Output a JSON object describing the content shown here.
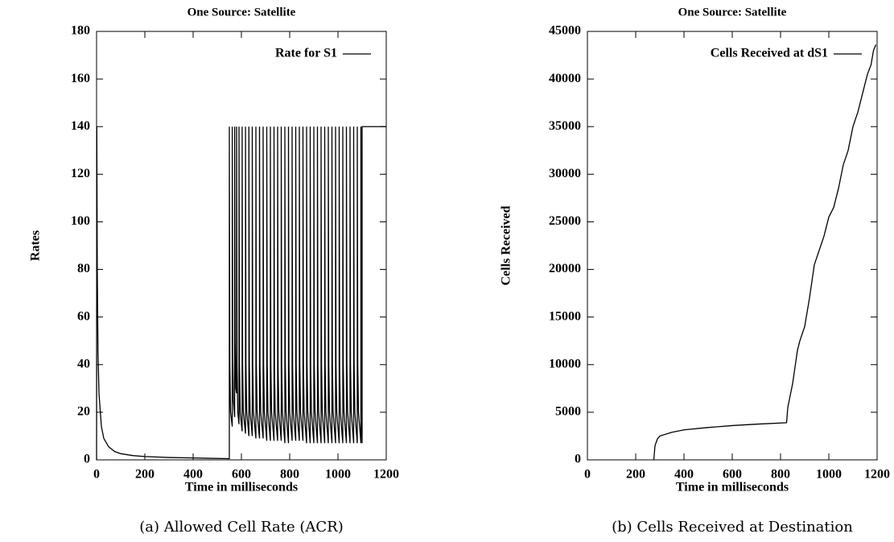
{
  "chart_data": [
    {
      "type": "line",
      "title": "One Source: Satellite",
      "xlabel": "Time in milliseconds",
      "ylabel": "Rates",
      "caption": "(a) Allowed Cell Rate (ACR)",
      "xlim": [
        0,
        1200
      ],
      "xticks": [
        0,
        200,
        400,
        600,
        800,
        1000,
        1200
      ],
      "ylim": [
        0,
        180
      ],
      "yticks": [
        0,
        20,
        40,
        60,
        80,
        100,
        120,
        140,
        160,
        180
      ],
      "legend": "upper right",
      "series": [
        {
          "name": "Rate for S1",
          "color": "#000000",
          "x": [
            0,
            1,
            3,
            6,
            10,
            20,
            30,
            50,
            75,
            100,
            150,
            200,
            300,
            400,
            550,
            550,
            552,
            555,
            562,
            562,
            564,
            567,
            572,
            572,
            574,
            577,
            580,
            580,
            582,
            585,
            590,
            590,
            592,
            595,
            603,
            603,
            605,
            608,
            617,
            617,
            619,
            622,
            631,
            631,
            633,
            636,
            645,
            645,
            647,
            650,
            660,
            660,
            662,
            665,
            675,
            675,
            677,
            680,
            690,
            690,
            692,
            695,
            705,
            705,
            707,
            710,
            720,
            720,
            722,
            725,
            735,
            735,
            737,
            740,
            750,
            750,
            752,
            755,
            765,
            765,
            767,
            770,
            780,
            780,
            782,
            785,
            795,
            795,
            797,
            800,
            810,
            810,
            812,
            815,
            825,
            825,
            827,
            830,
            840,
            840,
            842,
            845,
            855,
            855,
            857,
            860,
            870,
            870,
            872,
            875,
            885,
            885,
            887,
            890,
            900,
            900,
            902,
            905,
            915,
            915,
            917,
            920,
            930,
            930,
            932,
            935,
            945,
            945,
            947,
            950,
            960,
            960,
            962,
            965,
            975,
            975,
            977,
            980,
            990,
            990,
            992,
            995,
            1005,
            1005,
            1007,
            1010,
            1020,
            1020,
            1022,
            1025,
            1035,
            1035,
            1037,
            1040,
            1050,
            1050,
            1052,
            1055,
            1065,
            1065,
            1067,
            1070,
            1080,
            1080,
            1082,
            1085,
            1095,
            1095,
            1097,
            1099,
            1100,
            1100,
            1200
          ],
          "values": [
            0,
            140,
            80,
            45,
            28,
            14,
            9,
            5.5,
            3.5,
            2.6,
            1.8,
            1.4,
            1,
            0.8,
            0.5,
            140,
            40,
            20,
            14,
            140,
            45,
            25,
            18,
            140,
            50,
            30,
            28,
            140,
            40,
            20,
            15,
            140,
            40,
            20,
            12,
            140,
            40,
            20,
            11,
            140,
            40,
            20,
            10,
            140,
            40,
            20,
            10,
            140,
            40,
            20,
            9,
            140,
            40,
            20,
            9,
            140,
            40,
            20,
            9,
            140,
            40,
            20,
            8,
            140,
            40,
            20,
            8,
            140,
            40,
            20,
            8,
            140,
            40,
            20,
            8,
            140,
            40,
            20,
            8,
            140,
            40,
            20,
            7,
            140,
            40,
            20,
            7,
            140,
            40,
            20,
            8,
            140,
            40,
            20,
            8,
            140,
            40,
            20,
            8,
            140,
            40,
            20,
            8,
            140,
            40,
            20,
            7,
            140,
            40,
            20,
            7,
            140,
            40,
            20,
            7,
            140,
            40,
            20,
            7,
            140,
            40,
            20,
            7,
            140,
            40,
            20,
            7,
            140,
            40,
            20,
            7,
            140,
            40,
            20,
            7,
            140,
            40,
            20,
            7,
            140,
            40,
            20,
            7,
            140,
            40,
            20,
            7,
            140,
            40,
            20,
            7,
            140,
            40,
            20,
            7,
            140,
            40,
            20,
            7,
            140,
            40,
            20,
            7,
            140,
            40,
            20,
            7,
            140,
            40,
            15,
            7,
            140,
            140
          ]
        }
      ]
    },
    {
      "type": "line",
      "title": "One Source: Satellite",
      "xlabel": "Time in milliseconds",
      "ylabel": "Cells Received",
      "caption": "(b) Cells Received at Destination",
      "xlim": [
        0,
        1200
      ],
      "xticks": [
        0,
        200,
        400,
        600,
        800,
        1000,
        1200
      ],
      "ylim": [
        0,
        45000
      ],
      "yticks": [
        0,
        5000,
        10000,
        15000,
        20000,
        25000,
        30000,
        35000,
        40000,
        45000
      ],
      "legend": "upper right",
      "series": [
        {
          "name": "Cells Received at dS1",
          "color": "#000000",
          "x": [
            275,
            280,
            290,
            300,
            350,
            400,
            500,
            600,
            700,
            825,
            830,
            850,
            870,
            880,
            900,
            920,
            940,
            960,
            980,
            1000,
            1020,
            1040,
            1060,
            1080,
            1100,
            1120,
            1140,
            1160,
            1175,
            1185,
            1195
          ],
          "values": [
            0,
            1500,
            2200,
            2500,
            2900,
            3150,
            3400,
            3600,
            3750,
            3900,
            5500,
            8000,
            11500,
            12500,
            14000,
            17000,
            20500,
            22000,
            23500,
            25500,
            26500,
            28500,
            31000,
            32500,
            35000,
            36500,
            38500,
            40500,
            41500,
            43000,
            43600
          ]
        }
      ]
    }
  ]
}
